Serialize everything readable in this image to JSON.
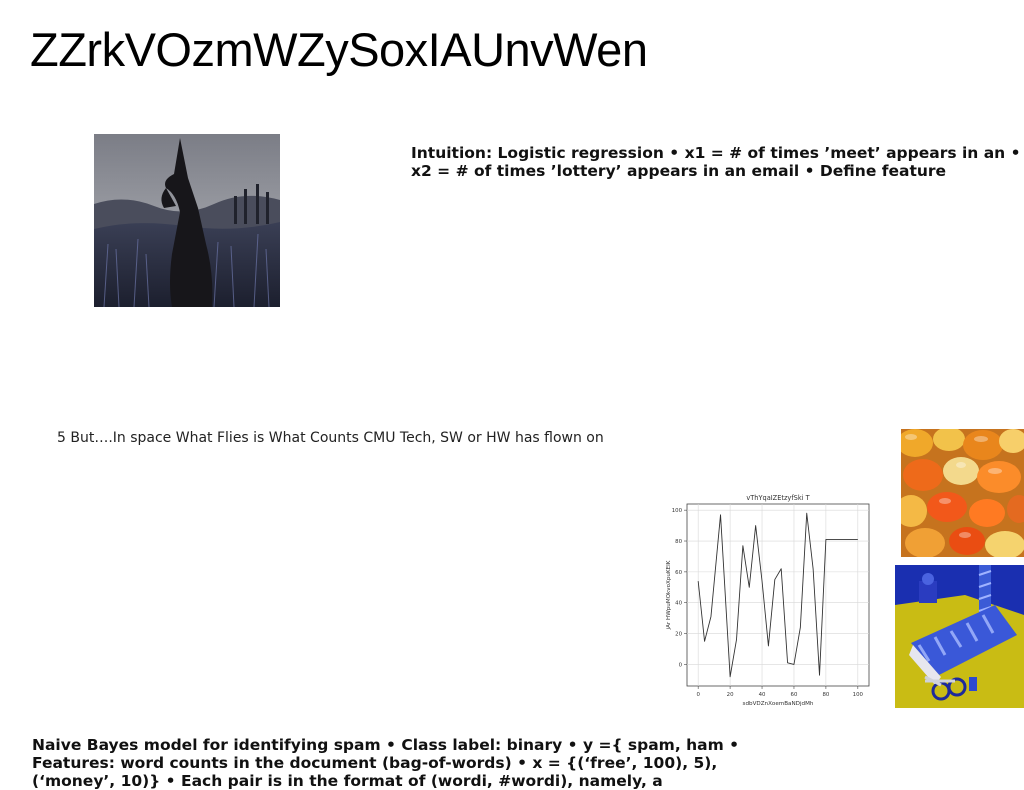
{
  "slide": {
    "title": "ZZrkVOzmWZySoxIAUnvWen",
    "intro_text": "Intuition: Logistic regression • x1 = # of times ’meet’ appears in an • x2 = # of times ’lottery’ appears in an email • Define feature",
    "caption": "5 But….In space What Flies is What Counts CMU Tech, SW or HW has flown on",
    "bottom_text": "Naive Bayes model for identifying spam • Class label: binary • y ={ spam, ham • Features: word counts in the document (bag-of-words) • x = {(‘free’, 100), 5), (‘money’, 10)} • Each pair is in the format of (wordi, #wordi), namely, a"
  },
  "images": {
    "witch_photo": "witch-silhouette-photo",
    "peppers_photo": "orange-peppers-photo",
    "gift_photo": "blue-gift-scissors-photo"
  },
  "chart_data": {
    "type": "line",
    "title": "vThYqaIZEtzyfSki T",
    "xlabel": "sdbVDZnXoemBaNDjdMh",
    "ylabel": "jAr HWpuMOkvoXpuKEIK",
    "xlim": [
      -7,
      107
    ],
    "ylim": [
      -14,
      104
    ],
    "x_ticks": [
      0,
      20,
      40,
      60,
      80,
      100
    ],
    "y_ticks": [
      0,
      20,
      40,
      60,
      80,
      100
    ],
    "grid": true,
    "x": [
      0,
      4,
      8,
      14,
      20,
      24,
      28,
      32,
      36,
      40,
      44,
      48,
      52,
      56,
      60,
      64,
      68,
      72,
      76,
      80,
      84,
      88,
      100
    ],
    "series": [
      {
        "values": [
          54,
          15,
          31,
          97,
          -8,
          16,
          77,
          50,
          90,
          54,
          12,
          55,
          62,
          1,
          0,
          24,
          98,
          62,
          -7,
          81,
          81,
          81,
          81
        ]
      }
    ],
    "line_color": "#333333"
  }
}
